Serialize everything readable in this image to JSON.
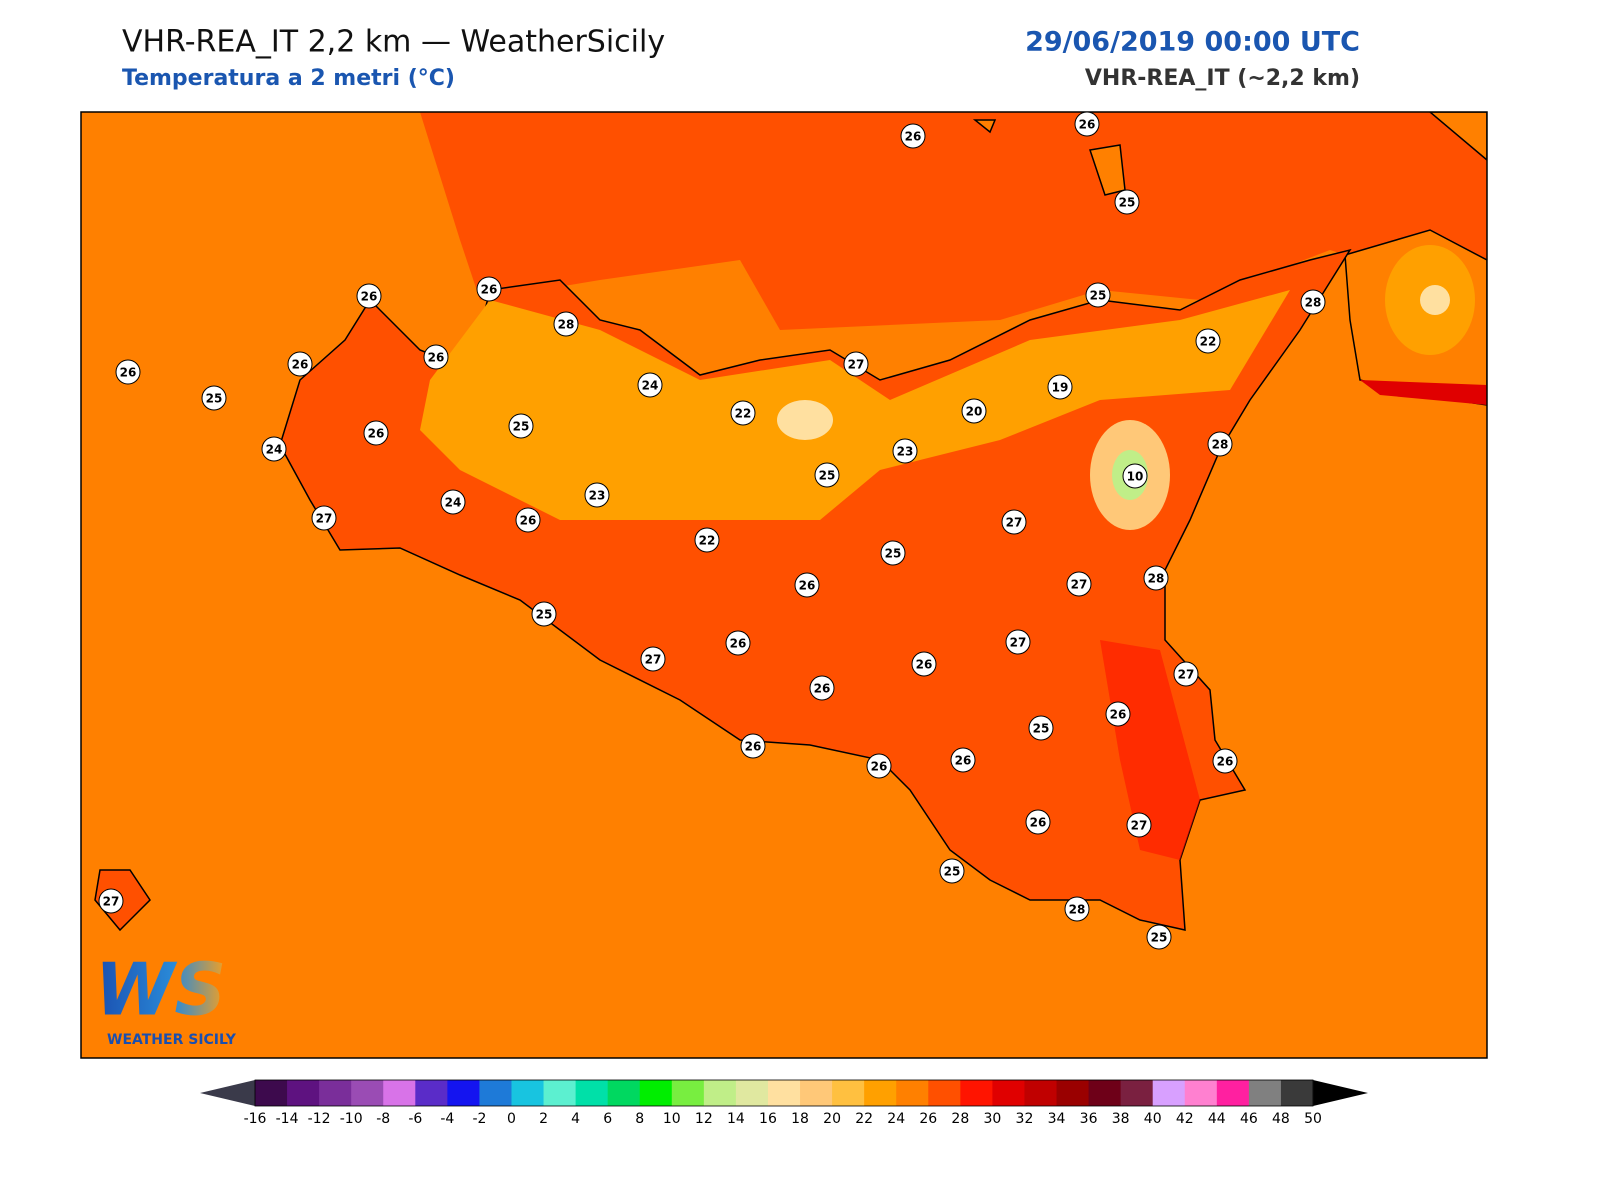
{
  "header": {
    "title": "VHR-REA_IT 2,2 km — WeatherSicily",
    "subtitle": "Temperatura a 2 metri (°C)",
    "datetime": "29/06/2019 00:00 UTC",
    "model": "VHR-REA_IT (~2,2 km)"
  },
  "stations": {
    "values": [
      26,
      26,
      25,
      26,
      26,
      28,
      25,
      28,
      26,
      26,
      26,
      25,
      24,
      27,
      22,
      19,
      20,
      22,
      25,
      26,
      24,
      23,
      28,
      25,
      10,
      23,
      24,
      27,
      26,
      27,
      22,
      25,
      28,
      26,
      27,
      25,
      27,
      26,
      27,
      26,
      27,
      26,
      25,
      26,
      26,
      26,
      26,
      26,
      26,
      27,
      25,
      28,
      25,
      27
    ]
  },
  "colorbar": {
    "ticks": [
      -16,
      -14,
      -12,
      -10,
      -8,
      -6,
      -4,
      -2,
      0,
      2,
      4,
      6,
      8,
      10,
      12,
      14,
      16,
      18,
      20,
      22,
      24,
      26,
      28,
      30,
      32,
      34,
      36,
      38,
      40,
      42,
      44,
      46,
      48,
      50
    ],
    "colors": [
      "#3d0a4d",
      "#5e1280",
      "#7a2e9a",
      "#9a4cb4",
      "#d873e8",
      "#5a2cc8",
      "#1414f0",
      "#1e7ad8",
      "#18c4e0",
      "#5cf0d0",
      "#00e0a8",
      "#00d860",
      "#00ee00",
      "#78ee40",
      "#c0ee88",
      "#e0e8a0",
      "#ffe0a0",
      "#ffc878",
      "#ffc040",
      "#ffa000",
      "#ff8000",
      "#ff5000",
      "#ff1400",
      "#e00000",
      "#c00000",
      "#9a0000",
      "#6e0018",
      "#7a2040",
      "#d8a0ff",
      "#ff80d0",
      "#ff20a0",
      "#808080",
      "#3a3a3a"
    ],
    "under_color": "#3a3a4a",
    "over_color": "#000000"
  },
  "logo": {
    "mark": "WS",
    "text": "WEATHER SICILY"
  }
}
